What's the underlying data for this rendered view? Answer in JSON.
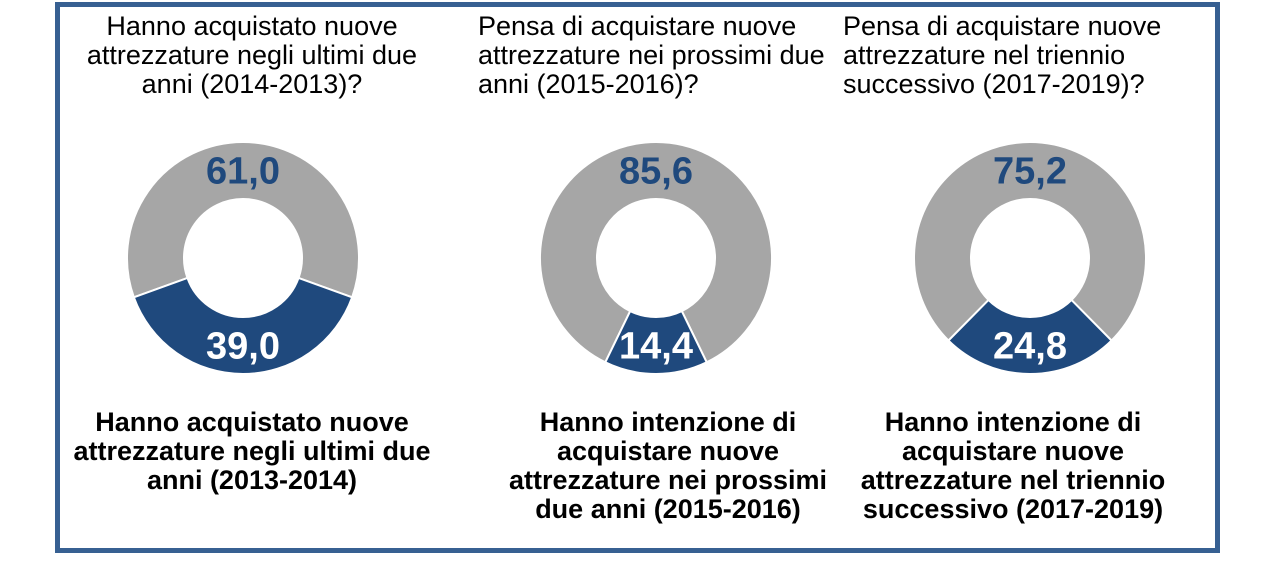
{
  "frame": {
    "border_color": "#376092",
    "background_color": "#FFFFFF"
  },
  "chart_data": [
    {
      "type": "pie",
      "subtype": "donut",
      "title": "Hanno acquistato nuove\nattrezzature negli ultimi due\nanni (2014-2013)?",
      "caption": "Hanno acquistato nuove\nattrezzature negli ultimi due\nanni (2013-2014)",
      "values_unit": "percent",
      "donut_hole_ratio": 0.51,
      "highlight_anchor": "bottom",
      "slices": [
        {
          "value": 61.0,
          "label": "61,0",
          "color": "#A6A6A6",
          "label_color": "#1F497D"
        },
        {
          "value": 39.0,
          "label": "39,0",
          "color": "#1F497D",
          "label_color": "#FFFFFF"
        }
      ]
    },
    {
      "type": "pie",
      "subtype": "donut",
      "title": "Pensa di acquistare nuove\nattrezzature nei prossimi due\nanni (2015-2016)?",
      "caption": "Hanno intenzione di\nacquistare nuove\nattrezzature nei prossimi\ndue anni (2015-2016)",
      "values_unit": "percent",
      "donut_hole_ratio": 0.51,
      "highlight_anchor": "bottom",
      "slices": [
        {
          "value": 85.6,
          "label": "85,6",
          "color": "#A6A6A6",
          "label_color": "#1F497D"
        },
        {
          "value": 14.4,
          "label": "14,4",
          "color": "#1F497D",
          "label_color": "#FFFFFF"
        }
      ]
    },
    {
      "type": "pie",
      "subtype": "donut",
      "title": "Pensa di acquistare nuove\nattrezzature nel triennio\nsuccessivo (2017-2019)?",
      "caption": "Hanno intenzione di\nacquistare nuove\nattrezzature nel triennio\nsuccessivo (2017-2019)",
      "values_unit": "percent",
      "donut_hole_ratio": 0.51,
      "highlight_anchor": "bottom",
      "slices": [
        {
          "value": 75.2,
          "label": "75,2",
          "color": "#A6A6A6",
          "label_color": "#1F497D"
        },
        {
          "value": 24.8,
          "label": "24,8",
          "color": "#1F497D",
          "label_color": "#FFFFFF"
        }
      ]
    }
  ]
}
